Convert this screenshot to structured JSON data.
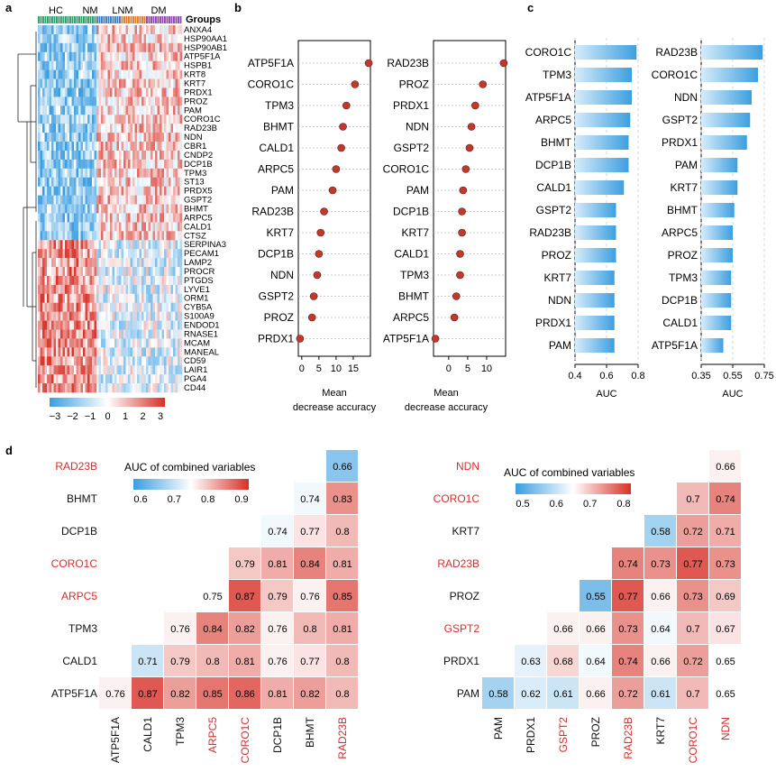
{
  "panel_labels": {
    "a": "a",
    "b": "b",
    "c": "c",
    "d": "d"
  },
  "colors": {
    "dot": "#c0392b",
    "bar": "#4aa3df",
    "low": "#3b9ee0",
    "mid": "#ffffff",
    "high": "#d73027"
  },
  "chart_data": [
    {
      "id": "a",
      "type": "heatmap",
      "title": "",
      "column_groups_label": "Groups",
      "column_groups": [
        "HC",
        "NM",
        "LNM",
        "DM"
      ],
      "group_colors": [
        "#2e9c68",
        "#3d7cc4",
        "#e07b27",
        "#8e44ad"
      ],
      "genes": [
        "ANXA4",
        "HSP90AA1",
        "HSP90AB1",
        "ATP5F1A",
        "HSPB1",
        "KRT8",
        "KRT7",
        "PRDX1",
        "PROZ",
        "PAM",
        "CORO1C",
        "RAD23B",
        "NDN",
        "CBR1",
        "CNDP2",
        "DCP1B",
        "TPM3",
        "ST13",
        "PRDX5",
        "GSPT2",
        "BHMT",
        "ARPC5",
        "CALD1",
        "CTSZ",
        "SERPINA3",
        "PECAM1",
        "LAMP2",
        "PROCR",
        "PTGDS",
        "LYVE1",
        "ORM1",
        "CYB5A",
        "S100A9",
        "ENDOD1",
        "RNASE1",
        "MCAM",
        "MANEAL",
        "CD59",
        "LAIR1",
        "PGA4",
        "CD44"
      ],
      "colorbar_ticks": [
        "−3",
        "−2",
        "−1",
        "0",
        "1",
        "2",
        "3"
      ],
      "colorbar_range": [
        -3,
        3
      ]
    },
    {
      "id": "b1",
      "type": "scatter",
      "xlabel_line1": "Mean",
      "xlabel_line2": "decrease accuracy",
      "xticks": [
        "0",
        "5",
        "10",
        "15"
      ],
      "xlim": [
        -1,
        20
      ],
      "genes": [
        "ATP5F1A",
        "CORO1C",
        "TPM3",
        "BHMT",
        "CALD1",
        "ARPC5",
        "PAM",
        "RAD23B",
        "KRT7",
        "DCP1B",
        "NDN",
        "GSPT2",
        "PROZ",
        "PRDX1"
      ],
      "values": [
        19.5,
        15.5,
        13.0,
        12.0,
        11.5,
        10.0,
        9.0,
        6.5,
        5.5,
        5.0,
        4.5,
        3.5,
        3.0,
        -0.5
      ]
    },
    {
      "id": "b2",
      "type": "scatter",
      "xlabel_line1": "Mean",
      "xlabel_line2": "decrease accuracy",
      "xticks": [
        "0",
        "5",
        "10"
      ],
      "xlim": [
        -4,
        15
      ],
      "genes": [
        "RAD23B",
        "PROZ",
        "PRDX1",
        "NDN",
        "GSPT2",
        "CORO1C",
        "PAM",
        "DCP1B",
        "KRT7",
        "CALD1",
        "TPM3",
        "BHMT",
        "ARPC5",
        "ATP5F1A"
      ],
      "values": [
        14.5,
        9.0,
        7.0,
        6.0,
        5.5,
        4.5,
        3.8,
        3.5,
        3.5,
        3.0,
        3.0,
        2.0,
        1.5,
        -3.5
      ]
    },
    {
      "id": "c1",
      "type": "bar",
      "xlabel": "AUC",
      "xticks": [
        "0.4",
        "0.6",
        "0.8"
      ],
      "xlim": [
        0.4,
        0.8
      ],
      "genes": [
        "CORO1C",
        "TPM3",
        "ATP5F1A",
        "ARPC5",
        "BHMT",
        "DCP1B",
        "CALD1",
        "GSPT2",
        "RAD23B",
        "PROZ",
        "KRT7",
        "NDN",
        "PRDX1",
        "PAM"
      ],
      "values": [
        0.79,
        0.76,
        0.76,
        0.75,
        0.74,
        0.74,
        0.71,
        0.66,
        0.66,
        0.66,
        0.65,
        0.65,
        0.65,
        0.65
      ]
    },
    {
      "id": "c2",
      "type": "bar",
      "xlabel": "AUC",
      "xticks": [
        "0.35",
        "0.55",
        "0.75"
      ],
      "xlim": [
        0.35,
        0.75
      ],
      "genes": [
        "RAD23B",
        "CORO1C",
        "NDN",
        "GSPT2",
        "PRDX1",
        "PAM",
        "KRT7",
        "BHMT",
        "ARPC5",
        "PROZ",
        "TPM3",
        "DCP1B",
        "CALD1",
        "ATP5F1A"
      ],
      "values": [
        0.74,
        0.71,
        0.67,
        0.66,
        0.64,
        0.58,
        0.58,
        0.56,
        0.55,
        0.55,
        0.54,
        0.54,
        0.54,
        0.49
      ]
    },
    {
      "id": "d1",
      "type": "heatmap",
      "title": "AUC of combined variables",
      "colorbar_ticks": [
        "0.6",
        "0.7",
        "0.8",
        "0.9"
      ],
      "colorbar_range": [
        0.6,
        0.9
      ],
      "row_genes": [
        "RAD23B",
        "BHMT",
        "DCP1B",
        "CORO1C",
        "ARPC5",
        "TPM3",
        "CALD1",
        "ATP5F1A"
      ],
      "row_red": [
        true,
        false,
        false,
        true,
        true,
        false,
        false,
        false
      ],
      "col_genes": [
        "ATP5F1A",
        "CALD1",
        "TPM3",
        "ARPC5",
        "CORO1C",
        "DCP1B",
        "BHMT",
        "RAD23B"
      ],
      "col_red": [
        false,
        false,
        false,
        true,
        true,
        false,
        false,
        true
      ],
      "rows": [
        [
          null,
          null,
          null,
          null,
          null,
          null,
          null,
          0.66
        ],
        [
          null,
          null,
          null,
          null,
          null,
          null,
          0.74,
          0.83
        ],
        [
          null,
          null,
          null,
          null,
          null,
          0.74,
          0.77,
          0.8
        ],
        [
          null,
          null,
          null,
          null,
          0.79,
          0.81,
          0.84,
          0.81
        ],
        [
          null,
          null,
          null,
          0.75,
          0.87,
          0.79,
          0.76,
          0.85
        ],
        [
          null,
          null,
          0.76,
          0.84,
          0.82,
          0.76,
          0.8,
          0.81
        ],
        [
          null,
          0.71,
          0.79,
          0.8,
          0.81,
          0.76,
          0.77,
          0.8
        ],
        [
          0.76,
          0.87,
          0.82,
          0.85,
          0.86,
          0.81,
          0.82,
          0.8
        ]
      ]
    },
    {
      "id": "d2",
      "type": "heatmap",
      "title": "AUC of combined variables",
      "colorbar_ticks": [
        "0.5",
        "0.6",
        "0.7",
        "0.8"
      ],
      "colorbar_range": [
        0.5,
        0.8
      ],
      "row_genes": [
        "NDN",
        "CORO1C",
        "KRT7",
        "RAD23B",
        "PROZ",
        "GSPT2",
        "PRDX1",
        "PAM"
      ],
      "row_red": [
        true,
        true,
        false,
        true,
        false,
        true,
        false,
        false
      ],
      "col_genes": [
        "PAM",
        "PRDX1",
        "GSPT2",
        "PROZ",
        "RAD23B",
        "KRT7",
        "CORO1C",
        "NDN"
      ],
      "col_red": [
        false,
        false,
        true,
        false,
        true,
        false,
        true,
        true
      ],
      "rows": [
        [
          null,
          null,
          null,
          null,
          null,
          null,
          null,
          0.66
        ],
        [
          null,
          null,
          null,
          null,
          null,
          null,
          0.7,
          0.74
        ],
        [
          null,
          null,
          null,
          null,
          null,
          0.58,
          0.72,
          0.71
        ],
        [
          null,
          null,
          null,
          null,
          0.74,
          0.73,
          0.77,
          0.73
        ],
        [
          null,
          null,
          null,
          0.55,
          0.77,
          0.66,
          0.73,
          0.69
        ],
        [
          null,
          null,
          0.66,
          0.66,
          0.73,
          0.64,
          0.7,
          0.67
        ],
        [
          null,
          0.63,
          0.68,
          0.64,
          0.74,
          0.66,
          0.72,
          0.65
        ],
        [
          0.58,
          0.62,
          0.61,
          0.66,
          0.72,
          0.61,
          0.7,
          0.65
        ]
      ]
    }
  ]
}
